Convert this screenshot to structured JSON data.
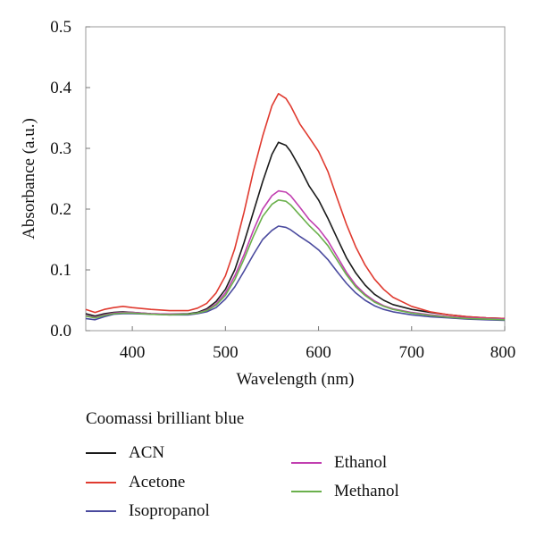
{
  "chart_data": {
    "type": "line",
    "title": "",
    "xlabel": "Wavelength (nm)",
    "ylabel": "Absorbance (a.u.)",
    "xlim": [
      350,
      800
    ],
    "ylim": [
      0,
      0.5
    ],
    "xticks": [
      400,
      500,
      600,
      700,
      800
    ],
    "yticks": [
      0.0,
      0.1,
      0.2,
      0.3,
      0.4,
      0.5
    ],
    "x_tick_labels": [
      "400",
      "500",
      "600",
      "700",
      "800"
    ],
    "y_tick_labels": [
      "0.0",
      "0.1",
      "0.2",
      "0.3",
      "0.4",
      "0.5"
    ],
    "grid": false,
    "legend_title": "Coomassi brilliant blue",
    "legend_position": "below plot",
    "series": [
      {
        "name": "ACN",
        "color": "#1a1a1a",
        "x": [
          350,
          360,
          370,
          380,
          390,
          400,
          420,
          440,
          460,
          470,
          480,
          490,
          500,
          510,
          520,
          530,
          540,
          550,
          557,
          565,
          570,
          580,
          590,
          600,
          610,
          620,
          630,
          640,
          650,
          660,
          670,
          680,
          700,
          720,
          740,
          760,
          780,
          800
        ],
        "y": [
          0.028,
          0.024,
          0.028,
          0.03,
          0.031,
          0.03,
          0.028,
          0.027,
          0.028,
          0.03,
          0.036,
          0.048,
          0.068,
          0.1,
          0.145,
          0.195,
          0.245,
          0.29,
          0.31,
          0.305,
          0.295,
          0.268,
          0.238,
          0.215,
          0.185,
          0.152,
          0.12,
          0.095,
          0.075,
          0.06,
          0.05,
          0.043,
          0.035,
          0.03,
          0.026,
          0.023,
          0.021,
          0.02
        ]
      },
      {
        "name": "Acetone",
        "color": "#e03a2f",
        "x": [
          350,
          360,
          370,
          380,
          390,
          400,
          420,
          440,
          460,
          470,
          480,
          490,
          500,
          510,
          520,
          530,
          540,
          550,
          557,
          565,
          570,
          580,
          590,
          600,
          610,
          620,
          630,
          640,
          650,
          660,
          670,
          680,
          700,
          720,
          740,
          760,
          780,
          800
        ],
        "y": [
          0.035,
          0.03,
          0.035,
          0.038,
          0.04,
          0.038,
          0.035,
          0.033,
          0.033,
          0.037,
          0.045,
          0.062,
          0.09,
          0.135,
          0.195,
          0.262,
          0.32,
          0.37,
          0.39,
          0.382,
          0.37,
          0.34,
          0.318,
          0.295,
          0.262,
          0.218,
          0.175,
          0.138,
          0.108,
          0.085,
          0.068,
          0.055,
          0.04,
          0.031,
          0.026,
          0.023,
          0.021,
          0.02
        ]
      },
      {
        "name": "Isopropanol",
        "color": "#4a4a9e",
        "x": [
          350,
          360,
          370,
          380,
          390,
          400,
          420,
          440,
          460,
          470,
          480,
          490,
          500,
          510,
          520,
          530,
          540,
          550,
          557,
          565,
          570,
          580,
          590,
          600,
          610,
          620,
          630,
          640,
          650,
          660,
          670,
          680,
          700,
          720,
          740,
          760,
          780,
          800
        ],
        "y": [
          0.02,
          0.018,
          0.023,
          0.027,
          0.028,
          0.028,
          0.027,
          0.026,
          0.026,
          0.028,
          0.031,
          0.038,
          0.052,
          0.072,
          0.098,
          0.125,
          0.15,
          0.165,
          0.172,
          0.17,
          0.166,
          0.155,
          0.145,
          0.133,
          0.117,
          0.097,
          0.078,
          0.062,
          0.05,
          0.041,
          0.035,
          0.031,
          0.026,
          0.023,
          0.021,
          0.019,
          0.018,
          0.017
        ]
      },
      {
        "name": "Ethanol",
        "color": "#c13fb0",
        "x": [
          350,
          360,
          370,
          380,
          390,
          400,
          420,
          440,
          460,
          470,
          480,
          490,
          500,
          510,
          520,
          530,
          540,
          550,
          557,
          565,
          570,
          580,
          590,
          600,
          610,
          620,
          630,
          640,
          650,
          660,
          670,
          680,
          700,
          720,
          740,
          760,
          780,
          800
        ],
        "y": [
          0.025,
          0.022,
          0.026,
          0.029,
          0.03,
          0.03,
          0.028,
          0.027,
          0.027,
          0.029,
          0.034,
          0.044,
          0.062,
          0.09,
          0.125,
          0.165,
          0.2,
          0.222,
          0.23,
          0.228,
          0.222,
          0.203,
          0.183,
          0.168,
          0.148,
          0.122,
          0.096,
          0.075,
          0.06,
          0.049,
          0.041,
          0.036,
          0.03,
          0.026,
          0.023,
          0.021,
          0.02,
          0.019
        ]
      },
      {
        "name": "Methanol",
        "color": "#6ab04c",
        "x": [
          350,
          360,
          370,
          380,
          390,
          400,
          420,
          440,
          460,
          470,
          480,
          490,
          500,
          510,
          520,
          530,
          540,
          550,
          557,
          565,
          570,
          580,
          590,
          600,
          610,
          620,
          630,
          640,
          650,
          660,
          670,
          680,
          700,
          720,
          740,
          760,
          780,
          800
        ],
        "y": [
          0.024,
          0.021,
          0.025,
          0.028,
          0.029,
          0.029,
          0.027,
          0.026,
          0.027,
          0.029,
          0.033,
          0.042,
          0.058,
          0.084,
          0.118,
          0.155,
          0.188,
          0.208,
          0.215,
          0.213,
          0.207,
          0.19,
          0.173,
          0.158,
          0.14,
          0.116,
          0.092,
          0.072,
          0.058,
          0.047,
          0.04,
          0.035,
          0.029,
          0.025,
          0.022,
          0.02,
          0.019,
          0.018
        ]
      }
    ]
  }
}
